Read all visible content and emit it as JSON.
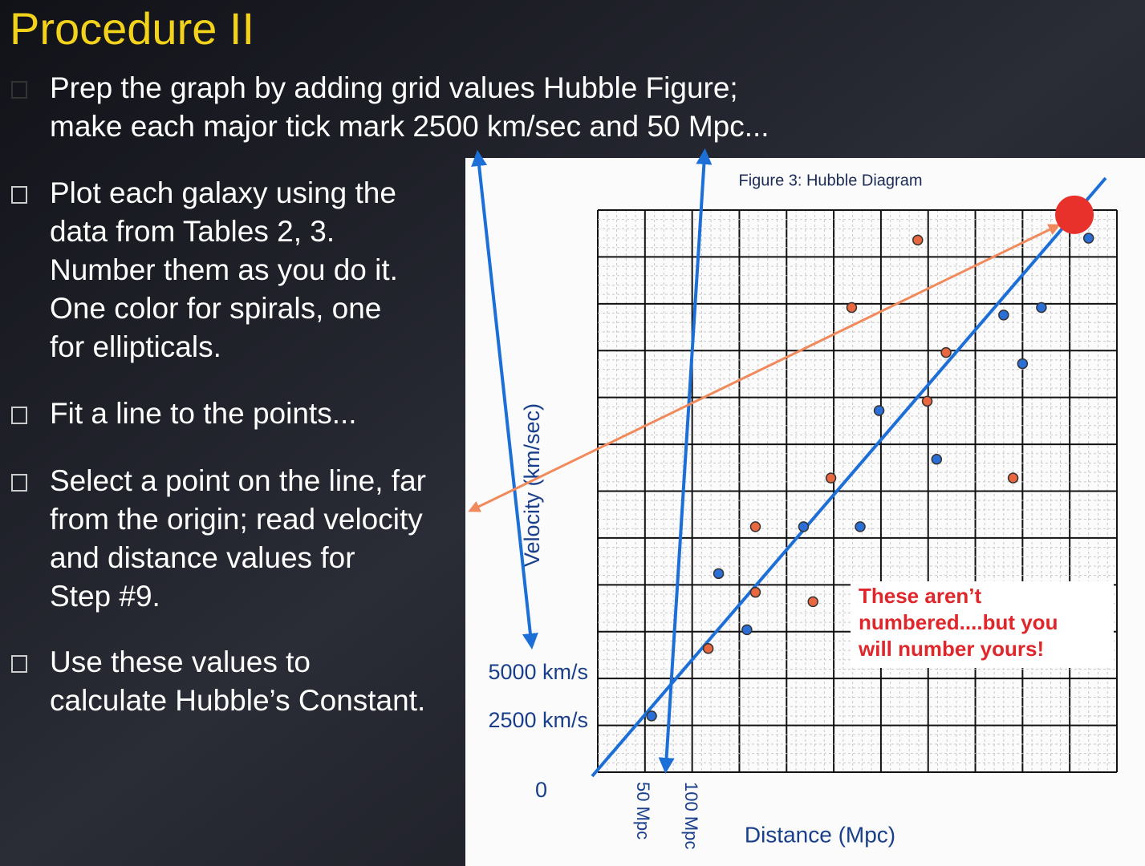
{
  "title": "Procedure II",
  "bullets": [
    [
      "Prep the graph by adding grid values Hubble Figure;",
      "make each major tick mark 2500 km/sec and 50 Mpc..."
    ],
    [
      "Plot each galaxy using the",
      "data from Tables 2, 3.",
      "Number them as you do it.",
      "One color for spirals, one",
      "for ellipticals."
    ],
    [
      "Fit a line to the points..."
    ],
    [
      "Select a point on the line, far",
      "from the origin; read velocity",
      "and distance values for",
      "Step #9."
    ],
    [
      "Use these values to",
      "calculate Hubble’s Constant."
    ]
  ],
  "figure": {
    "type": "scatter",
    "title": "Figure 3: Hubble Diagram",
    "y_label": "Velocity (km/sec)",
    "x_label": "Distance (Mpc)",
    "y_annotations": [
      "5000 km/s",
      "2500 km/s",
      "0"
    ],
    "x_annotations": [
      "50 Mpc",
      "100 Mpc"
    ],
    "note": [
      "These aren’t",
      "numbered....but you",
      "will number yours!"
    ],
    "xlim": [
      0,
      550
    ],
    "ylim": [
      0,
      30000
    ],
    "series": [
      {
        "color": "#e8673f",
        "x": [
          339,
          269,
          369,
          349,
          247,
          440,
          167,
          167,
          228,
          117
        ],
        "y": [
          28400,
          24800,
          22400,
          19800,
          15700,
          15700,
          13100,
          9600,
          9100,
          6600
        ]
      },
      {
        "color": "#2a6fd6",
        "x": [
          520,
          470,
          430,
          450,
          298,
          359,
          218,
          278,
          128,
          158,
          57
        ],
        "y": [
          28500,
          24800,
          24400,
          21800,
          19300,
          16700,
          13100,
          13100,
          10600,
          7600,
          3000
        ]
      }
    ],
    "selected_point": {
      "x": 505,
      "y": 29750,
      "color": "#e8312a"
    }
  }
}
